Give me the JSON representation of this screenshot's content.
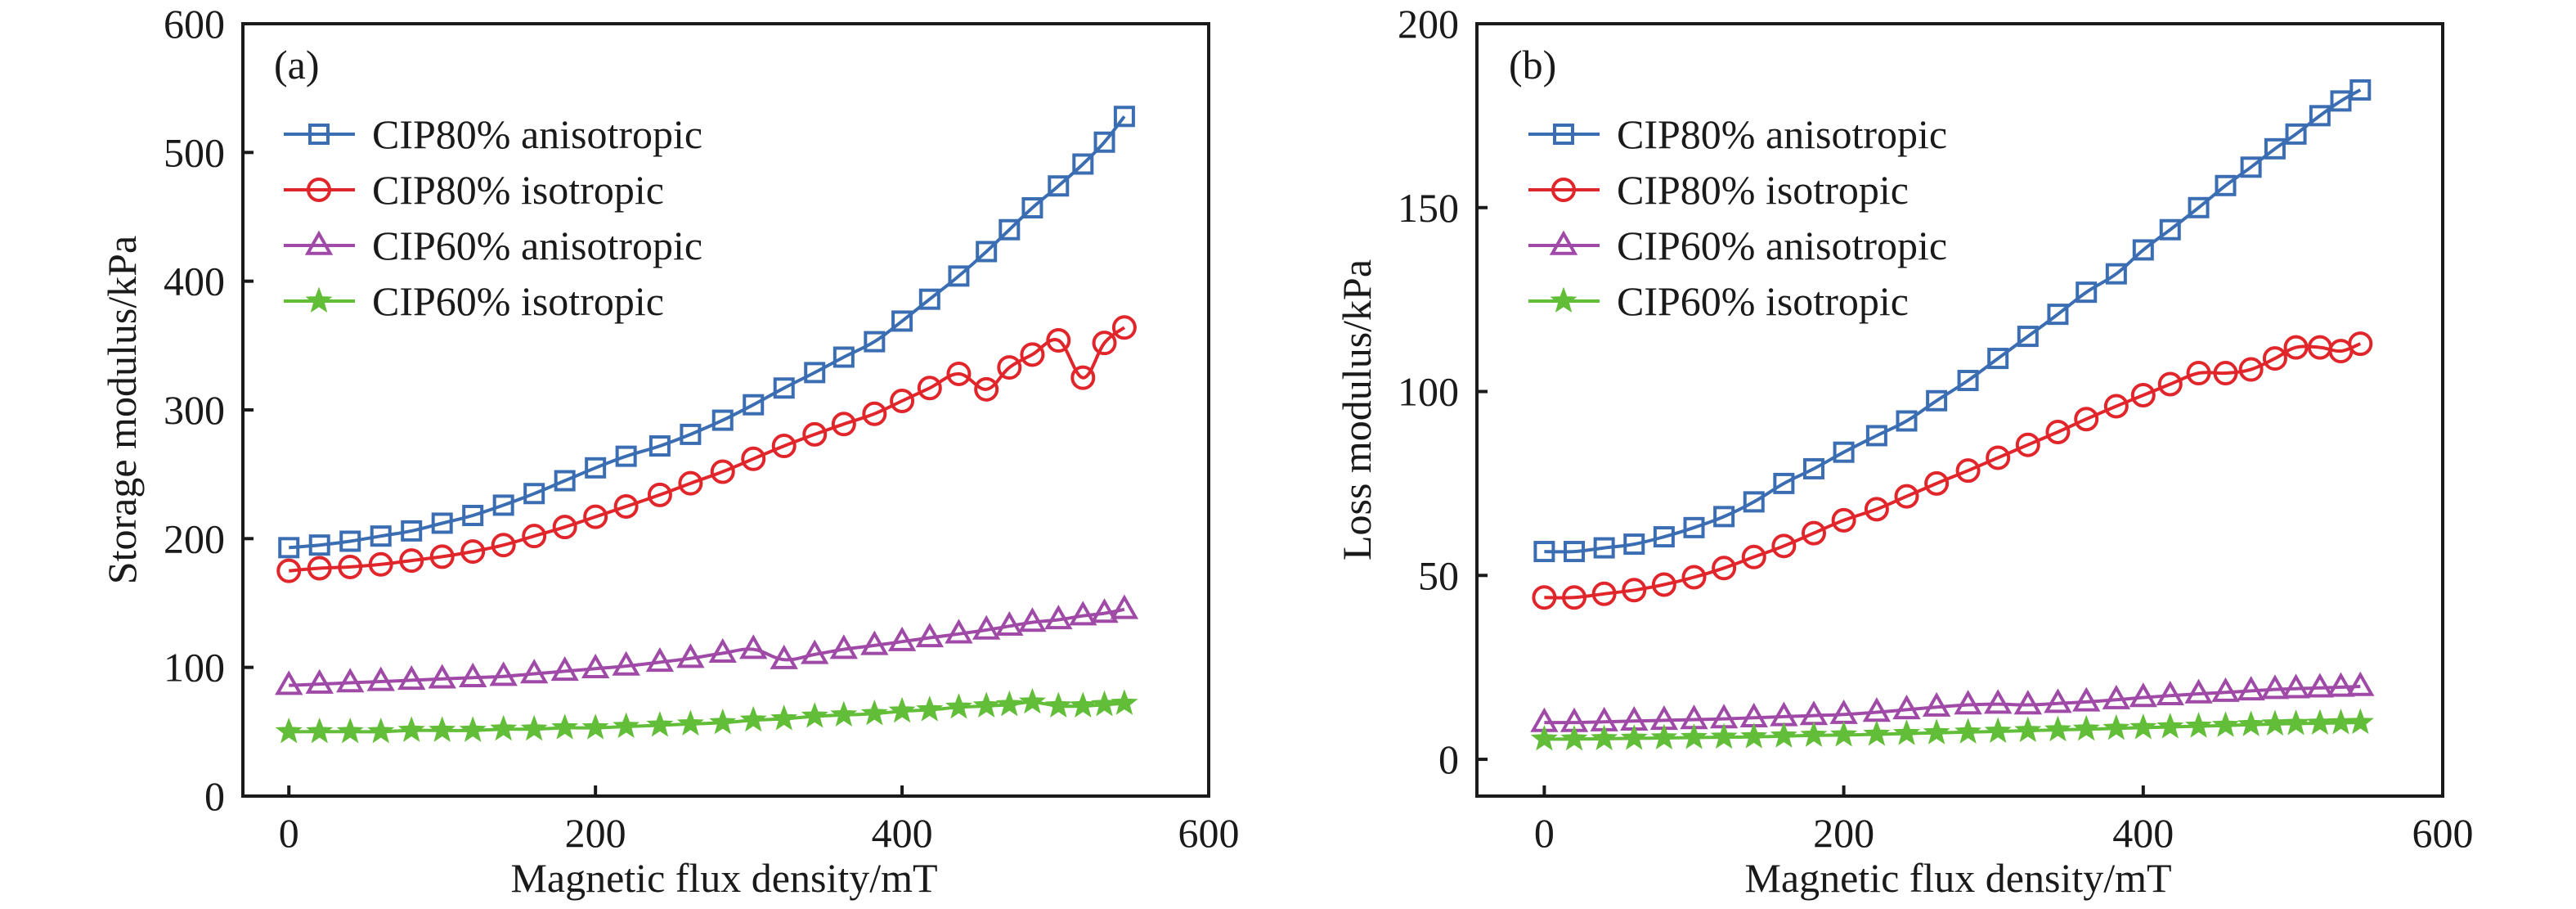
{
  "chart_data": [
    {
      "type": "line",
      "panel_label": "(a)",
      "xlabel": "Magnetic flux density/mT",
      "ylabel": "Storage modulus/kPa",
      "xlim": [
        -30,
        600
      ],
      "ylim": [
        0,
        600
      ],
      "xticks": [
        0,
        200,
        400,
        600
      ],
      "yticks": [
        0,
        100,
        200,
        300,
        400,
        500,
        600
      ],
      "grid": false,
      "legend_position": "top-left",
      "x": [
        0,
        20,
        40,
        60,
        80,
        100,
        120,
        140,
        160,
        180,
        200,
        220,
        242,
        262,
        283,
        303,
        323,
        343,
        362,
        382,
        400,
        418,
        437,
        455,
        470,
        485,
        502,
        518,
        532,
        545
      ],
      "series": [
        {
          "name": "CIP80% anisotropic",
          "color": "#3B6DB3",
          "marker": "square",
          "values": [
            193,
            195,
            198,
            202,
            206,
            212,
            218,
            226,
            235,
            245,
            255,
            264,
            272,
            281,
            292,
            304,
            317,
            329,
            341,
            353,
            369,
            386,
            404,
            423,
            440,
            457,
            474,
            491,
            508,
            528
          ]
        },
        {
          "name": "CIP80% isotropic",
          "color": "#E0262B",
          "marker": "circle",
          "values": [
            175,
            177,
            178,
            180,
            183,
            186,
            190,
            195,
            202,
            209,
            217,
            225,
            234,
            243,
            252,
            262,
            272,
            281,
            289,
            297,
            307,
            317,
            328,
            316,
            333,
            343,
            354,
            325,
            352,
            364
          ]
        },
        {
          "name": "CIP60% anisotropic",
          "color": "#A04AA8",
          "marker": "triangle",
          "values": [
            86,
            87,
            88,
            89,
            90,
            91,
            92,
            93,
            95,
            97,
            99,
            101,
            104,
            107,
            111,
            114,
            106,
            110,
            114,
            117,
            120,
            123,
            126,
            129,
            132,
            135,
            137,
            140,
            142,
            145
          ]
        },
        {
          "name": "CIP60% isotropic",
          "color": "#62BE39",
          "marker": "star",
          "values": [
            50,
            50,
            50,
            50,
            51,
            51,
            51,
            52,
            52,
            53,
            53,
            54,
            55,
            56,
            57,
            59,
            60,
            62,
            63,
            64,
            66,
            67,
            69,
            70,
            71,
            73,
            70,
            70,
            71,
            72
          ]
        }
      ]
    },
    {
      "type": "line",
      "panel_label": "(b)",
      "xlabel": "Magnetic flux density/mT",
      "ylabel": "Loss modulus/kPa",
      "xlim": [
        -45,
        600
      ],
      "ylim": [
        -10,
        200
      ],
      "xticks": [
        0,
        200,
        400,
        600
      ],
      "yticks": [
        0,
        50,
        100,
        150,
        200
      ],
      "grid": false,
      "legend_position": "top-left",
      "x": [
        0,
        20,
        40,
        60,
        80,
        100,
        120,
        140,
        160,
        180,
        200,
        222,
        242,
        262,
        283,
        303,
        323,
        343,
        362,
        382,
        400,
        418,
        437,
        455,
        472,
        488,
        502,
        518,
        532,
        545
      ],
      "series": [
        {
          "name": "CIP80% anisotropic",
          "color": "#3B6DB3",
          "marker": "square",
          "values": [
            56.5,
            56.5,
            57.5,
            58.5,
            60.5,
            63,
            66,
            70,
            75,
            79,
            83.5,
            88,
            92,
            97.5,
            103,
            109,
            115,
            121,
            127,
            132,
            138.5,
            144,
            150,
            156,
            161,
            166,
            170,
            175,
            179,
            182
          ]
        },
        {
          "name": "CIP80% isotropic",
          "color": "#E0262B",
          "marker": "circle",
          "values": [
            44,
            44,
            45,
            46,
            47.5,
            49.5,
            52,
            55,
            58,
            61.5,
            65,
            68,
            71.5,
            75,
            78.5,
            82,
            85.5,
            89,
            92.5,
            96,
            99,
            102,
            105,
            105,
            106,
            109,
            112,
            112,
            111,
            113
          ]
        },
        {
          "name": "CIP60% anisotropic",
          "color": "#A04AA8",
          "marker": "triangle",
          "values": [
            10,
            10,
            10.2,
            10.4,
            10.6,
            10.8,
            11,
            11.3,
            11.6,
            11.9,
            12.2,
            12.8,
            13.5,
            14.2,
            14.8,
            15,
            14.8,
            15.2,
            15.6,
            16.2,
            16.8,
            17.3,
            17.8,
            18.2,
            18.6,
            19,
            19.2,
            19.4,
            19.6,
            19.8
          ]
        },
        {
          "name": "CIP60% isotropic",
          "color": "#62BE39",
          "marker": "star",
          "values": [
            5.5,
            5.5,
            5.6,
            5.7,
            5.8,
            5.9,
            6,
            6.1,
            6.3,
            6.5,
            6.6,
            6.8,
            7,
            7.2,
            7.4,
            7.6,
            7.8,
            8,
            8.2,
            8.4,
            8.6,
            8.8,
            9,
            9.2,
            9.4,
            9.6,
            9.7,
            9.8,
            9.9,
            10
          ]
        }
      ]
    }
  ]
}
